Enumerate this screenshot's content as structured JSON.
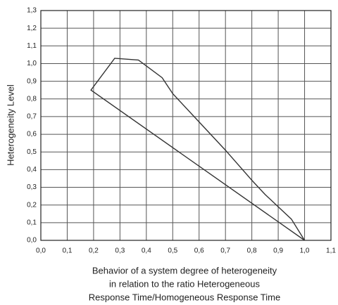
{
  "chart_data": {
    "type": "line",
    "ylabel": "Heterogeneity Level",
    "xlabel": [
      "Behavior of a system degree of heterogeneity",
      "in relation to the ratio Heterogeneous",
      "Response Time/Homogeneous Response Time"
    ],
    "x": [
      1.0,
      0.95,
      0.9,
      0.85,
      0.8,
      0.7,
      0.6,
      0.5,
      0.46,
      0.37,
      0.28,
      0.19,
      1.0
    ],
    "values": [
      0.0,
      0.12,
      0.19,
      0.26,
      0.34,
      0.51,
      0.67,
      0.83,
      0.92,
      1.02,
      1.03,
      0.85,
      0.0
    ],
    "color": "#333333",
    "xlim": [
      0,
      1.1
    ],
    "xticks": [
      {
        "value": 0,
        "label": "0,0"
      },
      {
        "value": 0.1,
        "label": "0,1"
      },
      {
        "value": 0.2,
        "label": "0,2"
      },
      {
        "value": 0.3,
        "label": "0,3"
      },
      {
        "value": 0.4,
        "label": "0,4"
      },
      {
        "value": 0.5,
        "label": "0,5"
      },
      {
        "value": 0.6,
        "label": "0,6"
      },
      {
        "value": 0.7,
        "label": "0,7"
      },
      {
        "value": 0.8,
        "label": "0,8"
      },
      {
        "value": 0.9,
        "label": "0,9"
      },
      {
        "value": 1.0,
        "label": "1,0"
      },
      {
        "value": 1.1,
        "label": "1,1"
      }
    ],
    "ylim": [
      0,
      1.3
    ],
    "yticks": [
      {
        "value": 0,
        "label": "0,0"
      },
      {
        "value": 0.1,
        "label": "0,1"
      },
      {
        "value": 0.2,
        "label": "0,2"
      },
      {
        "value": 0.3,
        "label": "0,3"
      },
      {
        "value": 0.4,
        "label": "0,4"
      },
      {
        "value": 0.5,
        "label": "0,5"
      },
      {
        "value": 0.6,
        "label": "0,6"
      },
      {
        "value": 0.7,
        "label": "0,7"
      },
      {
        "value": 0.8,
        "label": "0,8"
      },
      {
        "value": 0.9,
        "label": "0,9"
      },
      {
        "value": 1.0,
        "label": "1,0"
      },
      {
        "value": 1.1,
        "label": "1,1"
      },
      {
        "value": 1.2,
        "label": "1,2"
      },
      {
        "value": 1.3,
        "label": "1,3"
      }
    ],
    "grid": true
  }
}
